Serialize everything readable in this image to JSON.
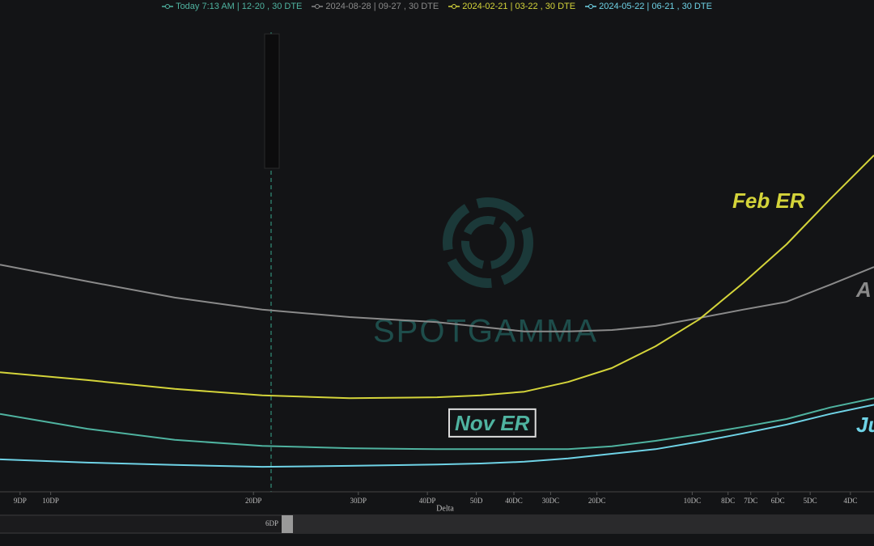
{
  "chart_data": {
    "type": "line",
    "x_label": "Delta",
    "watermark": "SPOTGAMMA",
    "scrollbar_label": "6DP",
    "annotations": [
      "Feb ER",
      "A",
      "Nov ER",
      "Ju"
    ],
    "x": [
      0,
      10,
      20,
      30,
      40,
      50,
      55,
      60,
      65,
      70,
      75,
      80,
      85,
      90,
      95,
      100
    ],
    "xlim": [
      0,
      100
    ],
    "xticks": [
      {
        "value": 2.3,
        "label": "9DP"
      },
      {
        "value": 5.8,
        "label": "10DP"
      },
      {
        "value": 29,
        "label": "20DP"
      },
      {
        "value": 41,
        "label": "30DP"
      },
      {
        "value": 48.9,
        "label": "40DP"
      },
      {
        "value": 54.5,
        "label": "50D"
      },
      {
        "value": 58.8,
        "label": "40DC"
      },
      {
        "value": 63,
        "label": "30DC"
      },
      {
        "value": 68.3,
        "label": "20DC"
      },
      {
        "value": 79.2,
        "label": "10DC"
      },
      {
        "value": 83.3,
        "label": "8DC"
      },
      {
        "value": 85.9,
        "label": "7DC"
      },
      {
        "value": 89,
        "label": "6DC"
      },
      {
        "value": 92.7,
        "label": "5DC"
      },
      {
        "value": 97.3,
        "label": "4DC"
      }
    ],
    "ylim": [
      0,
      100
    ],
    "series": [
      {
        "name": "Today 7:13 AM | 12-20 , 30 DTE",
        "color": "#4fb3a0",
        "values": [
          16.8,
          13.6,
          11.2,
          9.9,
          9.4,
          9.2,
          9.2,
          9.2,
          9.2,
          9.8,
          11.0,
          12.4,
          14.0,
          15.7,
          18.2,
          20.2
        ]
      },
      {
        "name": "2024-08-28 | 09-27 , 30 DTE",
        "color": "#8a8a8a",
        "values": [
          49.0,
          45.4,
          41.9,
          39.3,
          37.7,
          36.6,
          35.6,
          34.6,
          34.6,
          34.9,
          35.8,
          37.5,
          39.3,
          41.0,
          44.7,
          48.5
        ]
      },
      {
        "name": "2024-02-21 | 03-22 , 30 DTE",
        "color": "#d4d43a",
        "values": [
          25.8,
          24.1,
          22.2,
          20.8,
          20.2,
          20.4,
          20.8,
          21.6,
          23.7,
          26.7,
          31.4,
          37.2,
          45.0,
          53.4,
          63.2,
          72.6
        ]
      },
      {
        "name": "2024-05-22 | 06-21 , 30 DTE",
        "color": "#6fd3e6",
        "values": [
          7.0,
          6.3,
          5.8,
          5.4,
          5.6,
          5.9,
          6.1,
          6.5,
          7.2,
          8.2,
          9.2,
          10.8,
          12.6,
          14.5,
          16.8,
          18.8
        ]
      }
    ]
  }
}
